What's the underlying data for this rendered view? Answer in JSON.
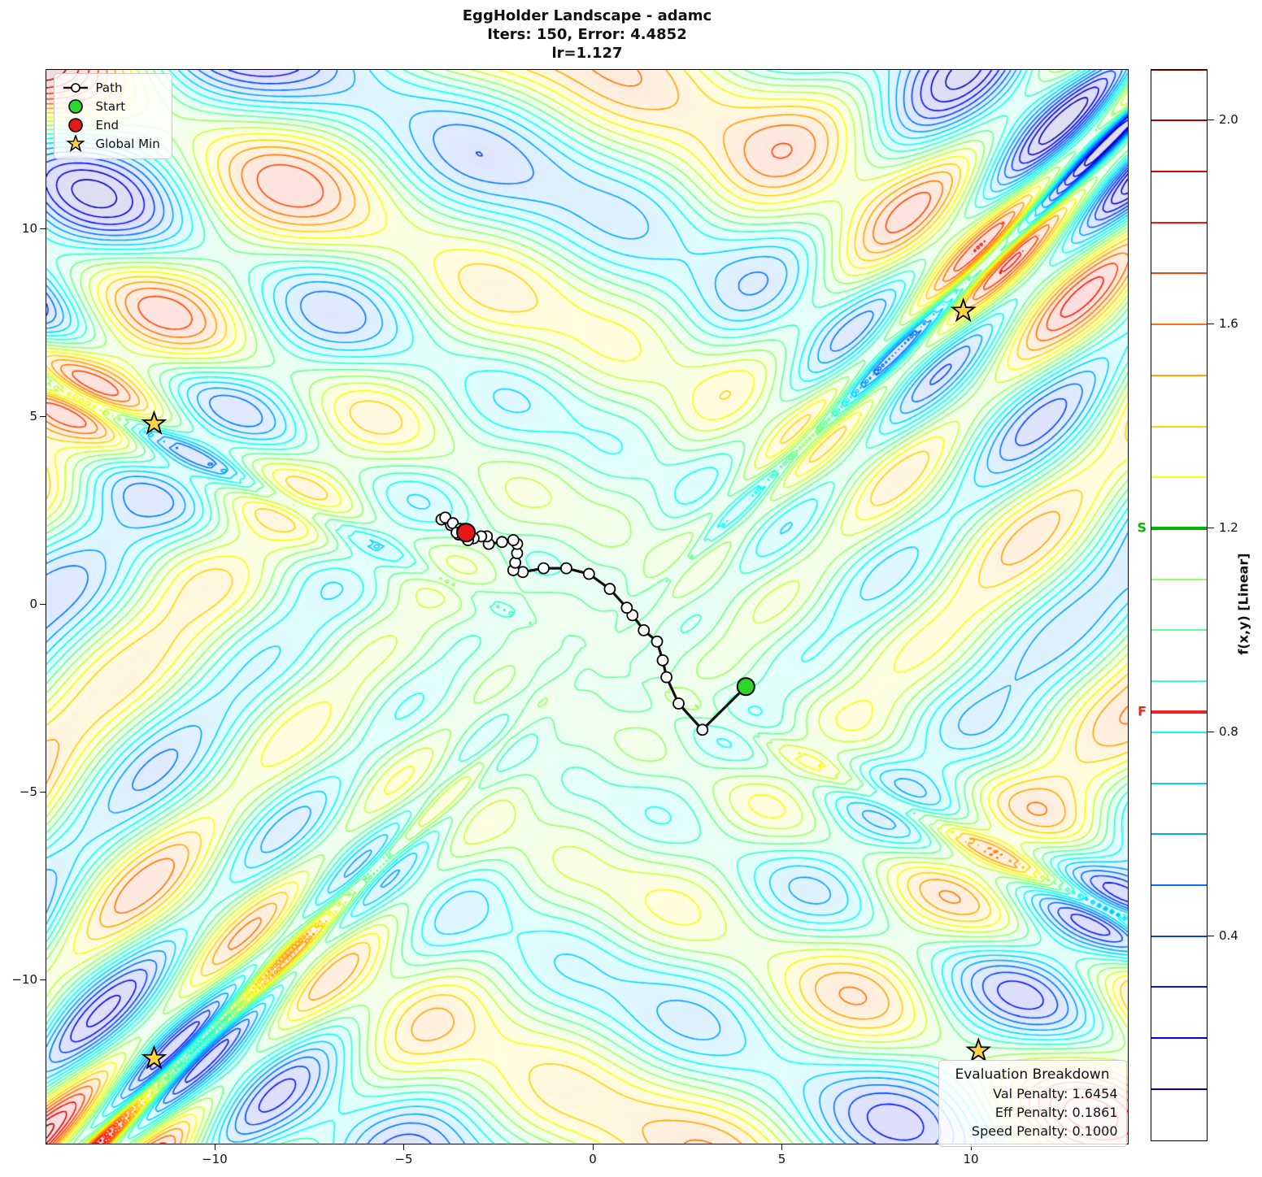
{
  "title": {
    "line1": "EggHolder Landscape - adamc",
    "line2": "Iters: 150, Error: 4.4852",
    "line3": "lr=1.127"
  },
  "legend": {
    "items": [
      {
        "label": "Path",
        "marker": "line-circle",
        "color": "#111111"
      },
      {
        "label": "Start",
        "marker": "circle",
        "color": "#2bd52b"
      },
      {
        "label": "End",
        "marker": "circle",
        "color": "#e51919"
      },
      {
        "label": "Global Min",
        "marker": "star",
        "color": "#ffd23f"
      }
    ]
  },
  "axes": {
    "x_ticks": [
      {
        "v": -10,
        "label": "−10"
      },
      {
        "v": -5,
        "label": "−5"
      },
      {
        "v": 0,
        "label": "0"
      },
      {
        "v": 5,
        "label": "5"
      },
      {
        "v": 10,
        "label": "10"
      }
    ],
    "y_ticks": [
      {
        "v": 10,
        "label": "10"
      },
      {
        "v": 5,
        "label": "5"
      },
      {
        "v": 0,
        "label": "0"
      },
      {
        "v": -5,
        "label": "−5"
      },
      {
        "v": -10,
        "label": "−10"
      }
    ]
  },
  "colorbar": {
    "label": "f(x,y) [Linear]",
    "min": 0,
    "max": 2.1,
    "level_step": 0.1,
    "ticks": [
      {
        "v": 2.0,
        "label": "2.0"
      },
      {
        "v": 1.6,
        "label": "1.6"
      },
      {
        "v": 1.2,
        "label": "1.2"
      },
      {
        "v": 0.8,
        "label": "0.8"
      },
      {
        "v": 0.4,
        "label": "0.4"
      }
    ],
    "start_marker": {
      "label": "S",
      "value": 1.2,
      "color": "#00b400"
    },
    "end_marker": {
      "label": "F",
      "value": 0.84,
      "color": "#ee2222"
    }
  },
  "eval_box": {
    "title": "Evaluation Breakdown",
    "lines": [
      "Val Penalty: 1.6454",
      "Eff Penalty: 0.1861",
      "Speed Penalty: 0.1000"
    ]
  },
  "chart_data": {
    "type": "contour",
    "title": "EggHolder Landscape - adamc",
    "subtitle": "Iters: 150, Error: 4.4852",
    "optimizer": "adamc",
    "iterations": 150,
    "error": 4.4852,
    "learning_rate": 1.127,
    "x_range": [
      -14.45,
      14.15
    ],
    "y_range": [
      -14.37,
      14.22
    ],
    "z_range": [
      0,
      2.1
    ],
    "colormap": "jet",
    "function": "EggHolder (scaled)",
    "function_scale": 35.31,
    "start": [
      4.05,
      -2.2
    ],
    "end": [
      -3.35,
      1.9
    ],
    "global_minima": [
      [
        9.8,
        7.8
      ],
      [
        -11.6,
        4.8
      ],
      [
        -11.6,
        -12.1
      ],
      [
        10.2,
        -11.9
      ]
    ],
    "path": [
      [
        4.05,
        -2.2
      ],
      [
        2.9,
        -3.35
      ],
      [
        2.27,
        -2.65
      ],
      [
        1.95,
        -1.95
      ],
      [
        1.85,
        -1.5
      ],
      [
        1.7,
        -1.0
      ],
      [
        1.35,
        -0.7
      ],
      [
        1.05,
        -0.3
      ],
      [
        0.9,
        -0.1
      ],
      [
        0.45,
        0.4
      ],
      [
        -0.1,
        0.8
      ],
      [
        -0.7,
        0.95
      ],
      [
        -1.3,
        0.95
      ],
      [
        -1.85,
        0.85
      ],
      [
        -2.1,
        0.9
      ],
      [
        -2.05,
        1.1
      ],
      [
        -2.0,
        1.35
      ],
      [
        -2.0,
        1.6
      ],
      [
        -2.1,
        1.7
      ],
      [
        -2.4,
        1.65
      ],
      [
        -2.75,
        1.6
      ],
      [
        -2.8,
        1.8
      ],
      [
        -2.95,
        1.8
      ],
      [
        -3.15,
        1.75
      ],
      [
        -3.3,
        1.7
      ],
      [
        -3.55,
        1.85
      ],
      [
        -3.75,
        2.1
      ],
      [
        -4.0,
        2.25
      ],
      [
        -3.9,
        2.3
      ],
      [
        -3.7,
        2.15
      ],
      [
        -3.5,
        2.0
      ],
      [
        -3.6,
        1.9
      ],
      [
        -3.45,
        1.95
      ],
      [
        -3.3,
        1.85
      ],
      [
        -3.4,
        2.0
      ],
      [
        -3.35,
        1.9
      ]
    ]
  }
}
